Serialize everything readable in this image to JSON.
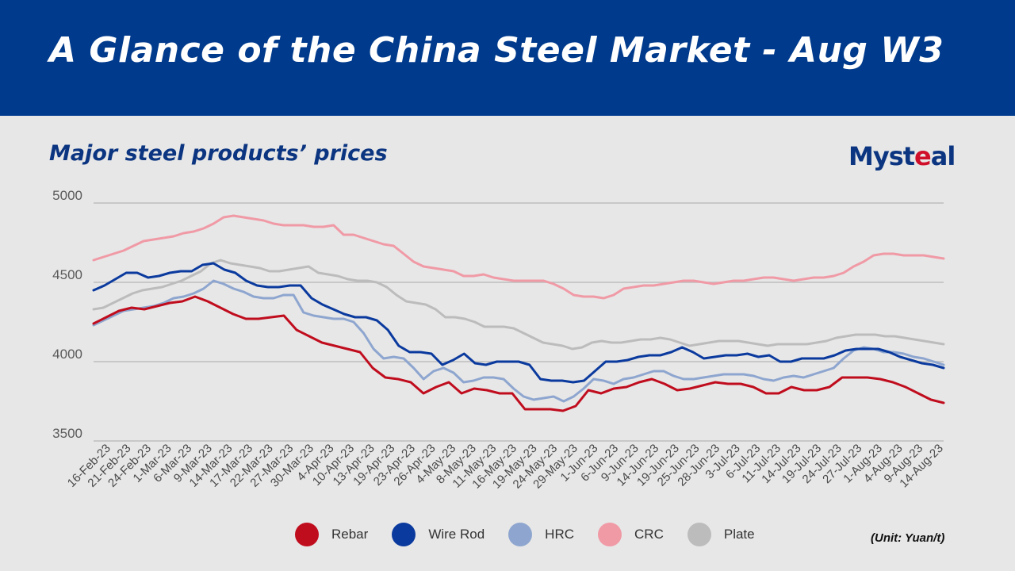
{
  "banner_title": "A Glance of the China Steel Market - Aug W3",
  "subtitle": "Major steel products’ prices",
  "logo": {
    "text_a": "Myst",
    "text_b": "e",
    "text_c": "al"
  },
  "unit_note": "(Unit: Yuan/t)",
  "colors": {
    "banner": "#003a8c",
    "title_text": "#0b3580"
  },
  "chart_data": {
    "type": "line",
    "title": "Major steel products’ prices",
    "ylim": [
      3500,
      5000
    ],
    "yticks": [
      3500,
      4000,
      4500,
      5000
    ],
    "grid": true,
    "legend_position": "bottom",
    "x_tick_labels": [
      "16-Feb-23",
      "21-Feb-23",
      "24-Feb-23",
      "1-Mar-23",
      "6-Mar-23",
      "9-Mar-23",
      "14-Mar-23",
      "17-Mar-23",
      "22-Mar-23",
      "27-Mar-23",
      "30-Mar-23",
      "4-Apr-23",
      "10-Apr-23",
      "13-Apr-23",
      "19-Apr-23",
      "23-Apr-23",
      "26-Apr-23",
      "4-May-23",
      "8-May-23",
      "11-May-23",
      "16-May-23",
      "19-May-23",
      "24-May-23",
      "29-May-23",
      "1-Jun-23",
      "6-Jun-23",
      "9-Jun-23",
      "14-Jun-23",
      "19-Jun-23",
      "25-Jun-23",
      "28-Jun-23",
      "3-Jul-23",
      "6-Jul-23",
      "11-Jul-23",
      "14-Jul-23",
      "19-Jul-23",
      "24-Jul-23",
      "27-Jul-23",
      "1-Aug-23",
      "4-Aug-23",
      "9-Aug-23",
      "14-Aug-23"
    ],
    "series": [
      {
        "name": "Rebar",
        "color": "#c00d1e",
        "values": [
          4240,
          4280,
          4320,
          4340,
          4330,
          4350,
          4370,
          4380,
          4410,
          4380,
          4340,
          4300,
          4270,
          4270,
          4280,
          4290,
          4200,
          4160,
          4120,
          4100,
          4080,
          4060,
          3960,
          3900,
          3890,
          3870,
          3800,
          3840,
          3870,
          3800,
          3830,
          3820,
          3800,
          3800,
          3700,
          3700,
          3700,
          3690,
          3720,
          3820,
          3800,
          3830,
          3840,
          3870,
          3890,
          3860,
          3820,
          3830,
          3850,
          3870,
          3860,
          3860,
          3840,
          3800,
          3800,
          3840,
          3820,
          3820,
          3840,
          3900,
          3900,
          3900,
          3890,
          3870,
          3840,
          3800,
          3760,
          3740
        ]
      },
      {
        "name": "Wire Rod",
        "color": "#0b3a9e",
        "values": [
          4450,
          4480,
          4520,
          4560,
          4560,
          4530,
          4540,
          4560,
          4570,
          4570,
          4610,
          4620,
          4580,
          4560,
          4510,
          4480,
          4470,
          4470,
          4480,
          4480,
          4400,
          4360,
          4330,
          4300,
          4280,
          4280,
          4260,
          4200,
          4100,
          4060,
          4060,
          4050,
          3980,
          4010,
          4050,
          3990,
          3980,
          4000,
          4000,
          4000,
          3980,
          3890,
          3880,
          3880,
          3870,
          3880,
          3940,
          4000,
          4000,
          4010,
          4030,
          4040,
          4040,
          4060,
          4090,
          4060,
          4020,
          4030,
          4040,
          4040,
          4050,
          4030,
          4040,
          4000,
          4000,
          4020,
          4020,
          4020,
          4040,
          4070,
          4080,
          4080,
          4080,
          4060,
          4030,
          4010,
          3990,
          3980,
          3960
        ]
      },
      {
        "name": "HRC",
        "color": "#8ea6cf",
        "values": [
          4230,
          4260,
          4290,
          4320,
          4330,
          4340,
          4350,
          4370,
          4400,
          4410,
          4430,
          4460,
          4510,
          4490,
          4460,
          4440,
          4410,
          4400,
          4400,
          4420,
          4420,
          4310,
          4290,
          4280,
          4270,
          4270,
          4250,
          4180,
          4080,
          4020,
          4030,
          4020,
          3960,
          3890,
          3940,
          3960,
          3930,
          3870,
          3880,
          3900,
          3900,
          3890,
          3830,
          3780,
          3760,
          3770,
          3780,
          3750,
          3780,
          3830,
          3890,
          3880,
          3860,
          3890,
          3900,
          3920,
          3940,
          3940,
          3910,
          3890,
          3890,
          3900,
          3910,
          3920,
          3920,
          3920,
          3910,
          3890,
          3880,
          3900,
          3910,
          3900,
          3920,
          3940,
          3960,
          4020,
          4070,
          4090,
          4080,
          4060,
          4060,
          4050,
          4030,
          4020,
          4000,
          3980
        ]
      },
      {
        "name": "CRC",
        "color": "#f09aa6",
        "values": [
          4640,
          4660,
          4680,
          4700,
          4730,
          4760,
          4770,
          4780,
          4790,
          4810,
          4820,
          4840,
          4870,
          4910,
          4920,
          4910,
          4900,
          4890,
          4870,
          4860,
          4860,
          4860,
          4850,
          4850,
          4860,
          4800,
          4800,
          4780,
          4760,
          4740,
          4730,
          4680,
          4630,
          4600,
          4590,
          4580,
          4570,
          4540,
          4540,
          4550,
          4530,
          4520,
          4510,
          4510,
          4510,
          4510,
          4490,
          4460,
          4420,
          4410,
          4410,
          4400,
          4420,
          4460,
          4470,
          4480,
          4480,
          4490,
          4500,
          4510,
          4510,
          4500,
          4490,
          4500,
          4510,
          4510,
          4520,
          4530,
          4530,
          4520,
          4510,
          4520,
          4530,
          4530,
          4540,
          4560,
          4600,
          4630,
          4670,
          4680,
          4680,
          4670,
          4670,
          4670,
          4660,
          4650
        ]
      },
      {
        "name": "Plate",
        "color": "#bcbcbc",
        "values": [
          4330,
          4340,
          4370,
          4400,
          4430,
          4450,
          4460,
          4470,
          4490,
          4510,
          4540,
          4570,
          4620,
          4640,
          4620,
          4610,
          4600,
          4590,
          4570,
          4570,
          4580,
          4590,
          4600,
          4560,
          4550,
          4540,
          4520,
          4510,
          4510,
          4500,
          4470,
          4420,
          4380,
          4370,
          4360,
          4330,
          4280,
          4280,
          4270,
          4250,
          4220,
          4220,
          4220,
          4210,
          4180,
          4150,
          4120,
          4110,
          4100,
          4080,
          4090,
          4120,
          4130,
          4120,
          4120,
          4130,
          4140,
          4140,
          4150,
          4140,
          4120,
          4100,
          4110,
          4120,
          4130,
          4130,
          4130,
          4120,
          4110,
          4100,
          4110,
          4110,
          4110,
          4110,
          4120,
          4130,
          4150,
          4160,
          4170,
          4170,
          4170,
          4160,
          4160,
          4150,
          4140,
          4130,
          4120,
          4110
        ]
      }
    ]
  }
}
